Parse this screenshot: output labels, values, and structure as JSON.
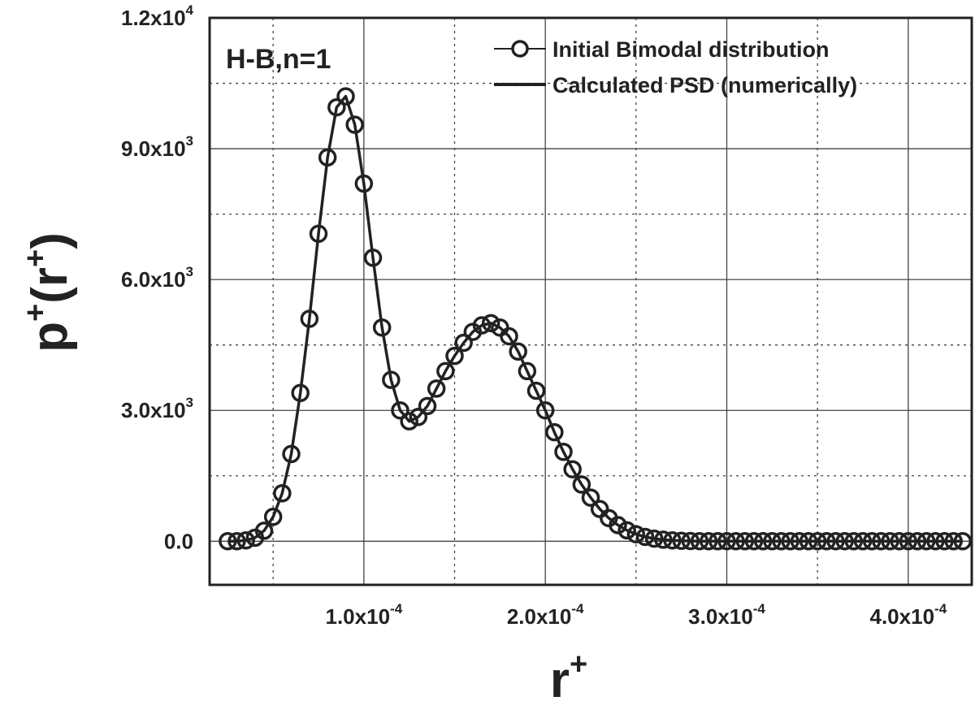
{
  "chart_data": {
    "type": "line",
    "annotation": "H-B,n=1",
    "xlabel": {
      "base": "r",
      "sup": "+"
    },
    "ylabel": {
      "base": "p",
      "sup": "+",
      "open": "(",
      "arg": "r",
      "arg_sup": "+",
      "close": ")"
    },
    "xlim": [
      1.5e-05,
      0.000435
    ],
    "ylim": [
      -1000,
      12000
    ],
    "grid": true,
    "legend_position": "top-right",
    "x_ticks": [
      {
        "value": 0.0001,
        "mant": "1.0x10",
        "exp": "-4"
      },
      {
        "value": 0.0002,
        "mant": "2.0x10",
        "exp": "-4"
      },
      {
        "value": 0.0003,
        "mant": "3.0x10",
        "exp": "-4"
      },
      {
        "value": 0.0004,
        "mant": "4.0x10",
        "exp": "-4"
      }
    ],
    "y_ticks": [
      {
        "value": 0,
        "mant": "0.0",
        "exp": ""
      },
      {
        "value": 3000,
        "mant": "3.0x10",
        "exp": "3"
      },
      {
        "value": 6000,
        "mant": "6.0x10",
        "exp": "3"
      },
      {
        "value": 9000,
        "mant": "9.0x10",
        "exp": "3"
      },
      {
        "value": 12000,
        "mant": "1.2x10",
        "exp": "4"
      }
    ],
    "x_minor_grid": [
      5e-05,
      0.00015,
      0.00025,
      0.00035
    ],
    "y_minor_grid": [
      1500,
      4500,
      7500,
      10500
    ],
    "series": [
      {
        "name": "Initial Bimodal distribution",
        "style": "markers-circle",
        "points": [
          [
            2.5e-05,
            0
          ],
          [
            3e-05,
            0
          ],
          [
            3.5e-05,
            20
          ],
          [
            4e-05,
            80
          ],
          [
            4.5e-05,
            240
          ],
          [
            5e-05,
            560
          ],
          [
            5.5e-05,
            1100
          ],
          [
            6e-05,
            2000
          ],
          [
            6.5e-05,
            3400
          ],
          [
            7e-05,
            5100
          ],
          [
            7.5e-05,
            7050
          ],
          [
            8e-05,
            8800
          ],
          [
            8.5e-05,
            9950
          ],
          [
            9e-05,
            10200
          ],
          [
            9.5e-05,
            9550
          ],
          [
            0.0001,
            8200
          ],
          [
            0.000105,
            6500
          ],
          [
            0.00011,
            4900
          ],
          [
            0.000115,
            3700
          ],
          [
            0.00012,
            3000
          ],
          [
            0.000125,
            2750
          ],
          [
            0.00013,
            2850
          ],
          [
            0.000135,
            3100
          ],
          [
            0.00014,
            3500
          ],
          [
            0.000145,
            3900
          ],
          [
            0.00015,
            4250
          ],
          [
            0.000155,
            4550
          ],
          [
            0.00016,
            4800
          ],
          [
            0.000165,
            4950
          ],
          [
            0.00017,
            5000
          ],
          [
            0.000175,
            4900
          ],
          [
            0.00018,
            4700
          ],
          [
            0.000185,
            4350
          ],
          [
            0.00019,
            3900
          ],
          [
            0.000195,
            3450
          ],
          [
            0.0002,
            3000
          ],
          [
            0.000205,
            2500
          ],
          [
            0.00021,
            2050
          ],
          [
            0.000215,
            1650
          ],
          [
            0.00022,
            1300
          ],
          [
            0.000225,
            1000
          ],
          [
            0.00023,
            740
          ],
          [
            0.000235,
            530
          ],
          [
            0.00024,
            370
          ],
          [
            0.000245,
            250
          ],
          [
            0.00025,
            160
          ],
          [
            0.000255,
            100
          ],
          [
            0.00026,
            60
          ],
          [
            0.000265,
            35
          ],
          [
            0.00027,
            20
          ],
          [
            0.000275,
            10
          ],
          [
            0.00028,
            5
          ],
          [
            0.000285,
            2
          ],
          [
            0.00029,
            0
          ],
          [
            0.000295,
            0
          ],
          [
            0.0003,
            0
          ],
          [
            0.000305,
            0
          ],
          [
            0.00031,
            0
          ],
          [
            0.000315,
            0
          ],
          [
            0.00032,
            0
          ],
          [
            0.000325,
            0
          ],
          [
            0.00033,
            0
          ],
          [
            0.000335,
            0
          ],
          [
            0.00034,
            0
          ],
          [
            0.000345,
            0
          ],
          [
            0.00035,
            0
          ],
          [
            0.000355,
            0
          ],
          [
            0.00036,
            0
          ],
          [
            0.000365,
            0
          ],
          [
            0.00037,
            0
          ],
          [
            0.000375,
            0
          ],
          [
            0.00038,
            0
          ],
          [
            0.000385,
            0
          ],
          [
            0.00039,
            0
          ],
          [
            0.000395,
            0
          ],
          [
            0.0004,
            0
          ],
          [
            0.000405,
            0
          ],
          [
            0.00041,
            0
          ],
          [
            0.000415,
            0
          ],
          [
            0.00042,
            0
          ],
          [
            0.000425,
            0
          ],
          [
            0.00043,
            0
          ]
        ]
      },
      {
        "name": "Calculated PSD (numerically)",
        "style": "line",
        "points": [
          [
            2.5e-05,
            0
          ],
          [
            3e-05,
            0
          ],
          [
            3.5e-05,
            20
          ],
          [
            4e-05,
            80
          ],
          [
            4.5e-05,
            240
          ],
          [
            5e-05,
            560
          ],
          [
            5.5e-05,
            1100
          ],
          [
            6e-05,
            2000
          ],
          [
            6.5e-05,
            3400
          ],
          [
            7e-05,
            5100
          ],
          [
            7.5e-05,
            7050
          ],
          [
            8e-05,
            8800
          ],
          [
            8.5e-05,
            9950
          ],
          [
            9e-05,
            10200
          ],
          [
            9.5e-05,
            9550
          ],
          [
            0.0001,
            8200
          ],
          [
            0.000105,
            6500
          ],
          [
            0.00011,
            4900
          ],
          [
            0.000115,
            3700
          ],
          [
            0.00012,
            3000
          ],
          [
            0.000125,
            2750
          ],
          [
            0.00013,
            2850
          ],
          [
            0.000135,
            3100
          ],
          [
            0.00014,
            3500
          ],
          [
            0.000145,
            3900
          ],
          [
            0.00015,
            4250
          ],
          [
            0.000155,
            4550
          ],
          [
            0.00016,
            4800
          ],
          [
            0.000165,
            4950
          ],
          [
            0.00017,
            5000
          ],
          [
            0.000175,
            4900
          ],
          [
            0.00018,
            4700
          ],
          [
            0.000185,
            4350
          ],
          [
            0.00019,
            3900
          ],
          [
            0.000195,
            3450
          ],
          [
            0.0002,
            3000
          ],
          [
            0.000205,
            2500
          ],
          [
            0.00021,
            2050
          ],
          [
            0.000215,
            1650
          ],
          [
            0.00022,
            1300
          ],
          [
            0.000225,
            1000
          ],
          [
            0.00023,
            740
          ],
          [
            0.000235,
            530
          ],
          [
            0.00024,
            370
          ],
          [
            0.000245,
            250
          ],
          [
            0.00025,
            160
          ],
          [
            0.000255,
            100
          ],
          [
            0.00026,
            60
          ],
          [
            0.000265,
            35
          ],
          [
            0.00027,
            20
          ],
          [
            0.000275,
            10
          ],
          [
            0.00028,
            5
          ],
          [
            0.000285,
            2
          ],
          [
            0.00029,
            0
          ],
          [
            0.00043,
            0
          ]
        ]
      }
    ]
  }
}
